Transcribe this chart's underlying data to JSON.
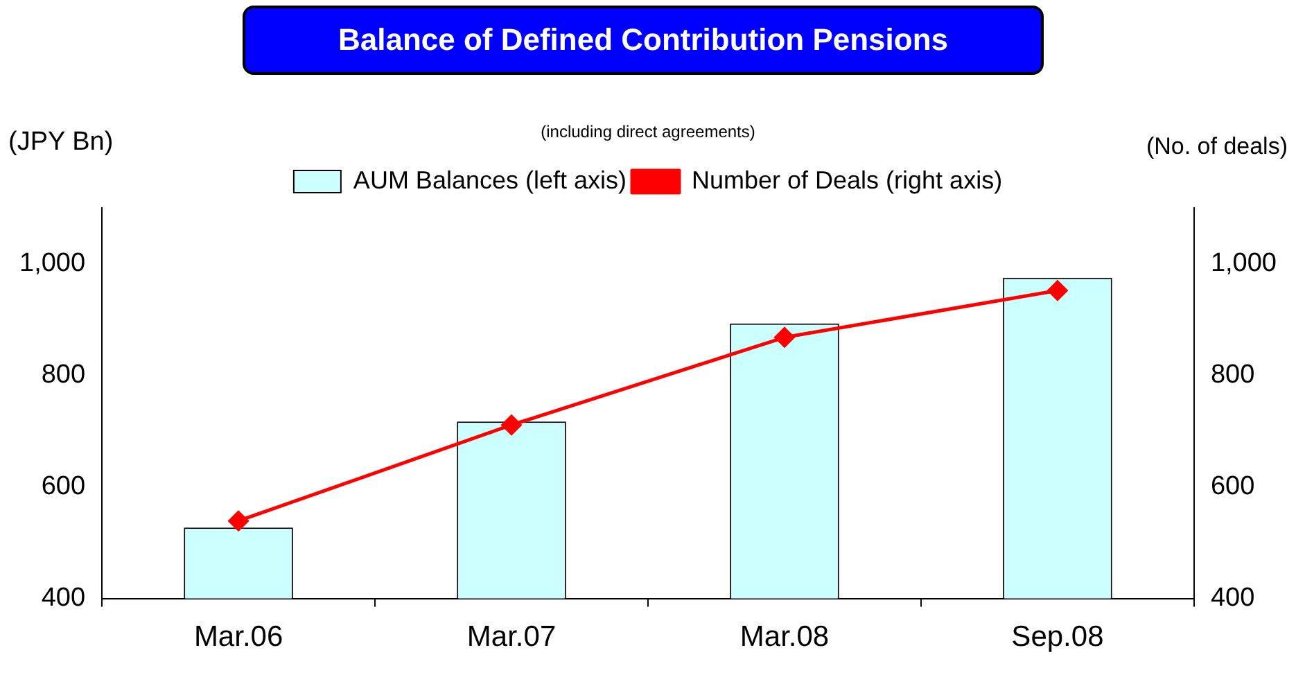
{
  "chart_data": {
    "type": "bar",
    "title": "Balance of Defined Contribution Pensions",
    "subtitle": "(including direct agreements)",
    "ylabel": "(JPY Bn)",
    "y2label": "(No. of deals)",
    "categories": [
      "Mar.06",
      "Mar.07",
      "Mar.08",
      "Sep.08"
    ],
    "series": [
      {
        "name": "AUM Balances (left axis)",
        "color": "#ccffff",
        "values": [
          527,
          717,
          893,
          975
        ]
      },
      {
        "name": "Number of Deals (right axis)",
        "type": "line",
        "axis": "y2",
        "color": "#ff0000",
        "values": [
          539,
          711,
          868,
          952
        ],
        "marker": "diamond"
      }
    ],
    "ylim": [
      400,
      1100
    ],
    "yticks": [
      400,
      600,
      800,
      {
        "value": 1000,
        "label": "1,000"
      }
    ],
    "y2lim": [
      400,
      1100
    ],
    "y2ticks": [
      400,
      600,
      800,
      {
        "value": 1000,
        "label": "1,000"
      }
    ],
    "grid": false,
    "legend": "top"
  }
}
